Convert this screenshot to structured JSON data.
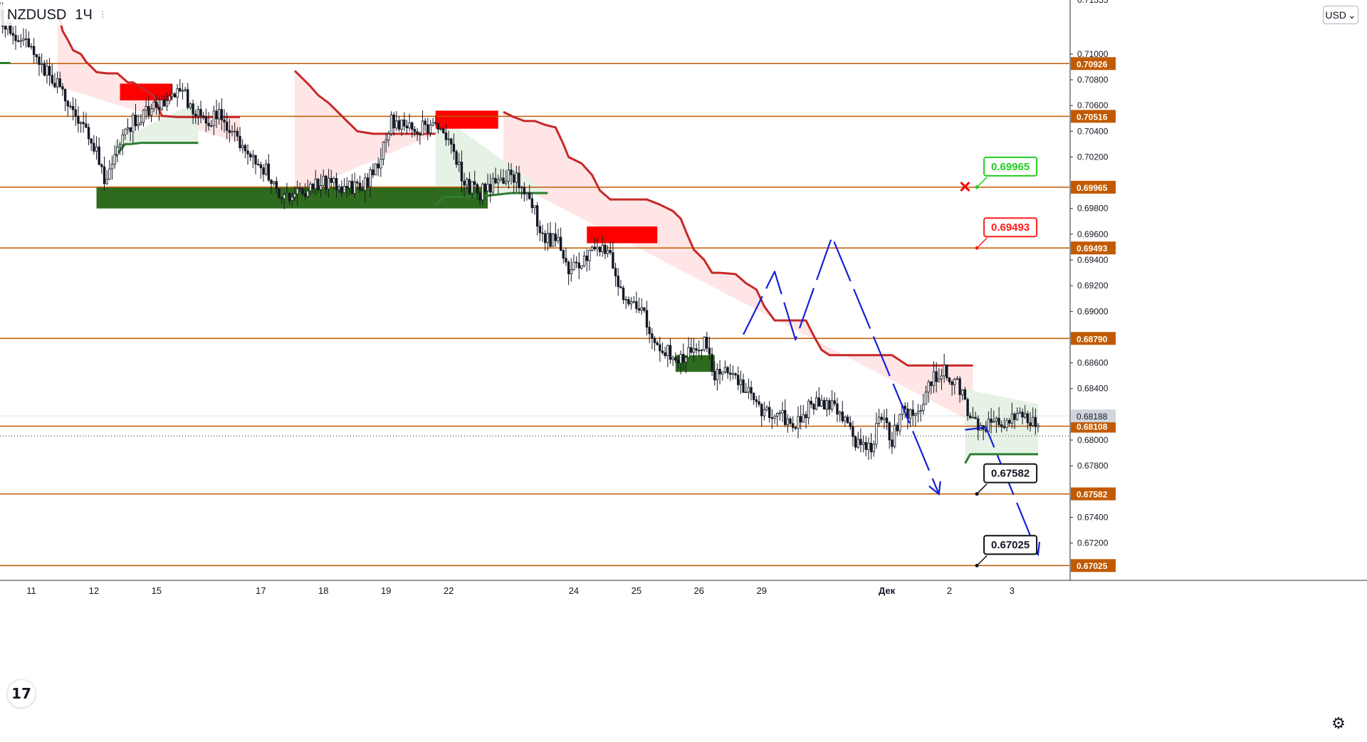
{
  "symbol": {
    "ticker": "NZDUSD",
    "interval": "1Ч",
    "status": "⁝"
  },
  "currency_button": {
    "label": "USD",
    "arrow": "⌄"
  },
  "logo": {
    "text": "17"
  },
  "settings": {
    "icon": "gear-icon"
  },
  "colors": {
    "level_line": "#c15a00",
    "level_badge": "#c15a00",
    "supply_zone": "#ff0000",
    "demand_zone": "#2e6b1e",
    "downtrend_line": "#c62828",
    "uptrend_line": "#2e7d32",
    "downtrend_fill": "#ffe5e5",
    "uptrend_fill": "#e5f2e5",
    "candles": "#131722",
    "projection": "#1321d6",
    "target_box_tp": "#111111",
    "target_box_sl": "#ff1a1a",
    "target_box_entry": "#22cc22"
  },
  "chart_data": {
    "type": "candlestick",
    "symbol": "NZDUSD",
    "timeframe": "1Ч",
    "ylim": [
      0.6691,
      0.7142
    ],
    "y_ticks": [
      "0.71000",
      "0.70800",
      "0.70600",
      "0.70400",
      "0.70200",
      "0.69800",
      "0.69600",
      "0.69400",
      "0.69200",
      "0.69000",
      "0.68600",
      "0.68400",
      "0.68000",
      "0.67800",
      "0.67400",
      "0.67200"
    ],
    "y_tick_values": [
      0.71,
      0.708,
      0.706,
      0.704,
      0.702,
      0.698,
      0.696,
      0.694,
      0.692,
      0.69,
      0.686,
      0.684,
      0.68,
      0.678,
      0.674,
      0.672
    ],
    "top_partial_tick": "0.71355",
    "x_ticks": [
      "11",
      "12",
      "15",
      "17",
      "18",
      "19",
      "22",
      "24",
      "25",
      "26",
      "29",
      "Дек",
      "2",
      "3"
    ],
    "x_tick_index": [
      0,
      24,
      48,
      88,
      112,
      136,
      160,
      208,
      232,
      256,
      280,
      328,
      352,
      376
    ],
    "x_range_index": [
      -12,
      398
    ],
    "current_price": "0.68188",
    "current_price_value": 0.68188,
    "levels": [
      {
        "label": "0.70926",
        "value": 0.70926
      },
      {
        "label": "0.70516",
        "value": 0.70516
      },
      {
        "label": "0.69965",
        "value": 0.69965
      },
      {
        "label": "0.69493",
        "value": 0.69493
      },
      {
        "label": "0.68790",
        "value": 0.6879
      },
      {
        "label": "0.68108",
        "value": 0.68108
      },
      {
        "label": "0.67582",
        "value": 0.67582
      },
      {
        "label": "0.67025",
        "value": 0.67025
      }
    ],
    "target_labels": [
      {
        "label": "0.69965",
        "value": 0.69965,
        "kind": "entry",
        "index": 362
      },
      {
        "label": "0.69493",
        "value": 0.69493,
        "kind": "stop",
        "index": 362
      },
      {
        "label": "0.67582",
        "value": 0.67582,
        "kind": "target",
        "index": 362
      },
      {
        "label": "0.67025",
        "value": 0.67025,
        "kind": "target",
        "index": 362
      }
    ],
    "cross_marker": {
      "index": 358,
      "value": 0.6997
    },
    "supply_zones": [
      {
        "i0": 34,
        "i1": 54,
        "top": 0.7077,
        "bottom": 0.7064
      },
      {
        "i0": 155,
        "i1": 179,
        "top": 0.7056,
        "bottom": 0.7042
      },
      {
        "i0": 213,
        "i1": 240,
        "top": 0.6966,
        "bottom": 0.6953
      }
    ],
    "demand_zones": [
      {
        "i0": 25,
        "i1": 175,
        "top": 0.6997,
        "bottom": 0.698
      },
      {
        "i0": 247,
        "i1": 262,
        "top": 0.6866,
        "bottom": 0.6853
      }
    ],
    "downtrend_line": [
      [
        10,
        0.7135
      ],
      [
        12,
        0.7118
      ],
      [
        14,
        0.7111
      ],
      [
        16,
        0.7103
      ],
      [
        19,
        0.71
      ],
      [
        21,
        0.7094
      ],
      [
        25,
        0.7086
      ],
      [
        29,
        0.7085
      ],
      [
        33,
        0.7085
      ],
      [
        37,
        0.7078
      ],
      [
        39,
        0.7078
      ],
      [
        44,
        0.7072
      ],
      [
        47,
        0.7067
      ],
      [
        50,
        0.7052
      ],
      [
        56,
        0.7051
      ],
      [
        62,
        0.7051
      ],
      [
        68,
        0.7051
      ],
      [
        74,
        0.7051
      ],
      [
        80,
        0.7051
      ]
    ],
    "downtrend_line_2": [
      [
        101,
        0.7087
      ],
      [
        104,
        0.7081
      ],
      [
        107,
        0.7075
      ],
      [
        110,
        0.7068
      ],
      [
        114,
        0.7062
      ],
      [
        117,
        0.7056
      ],
      [
        121,
        0.7048
      ],
      [
        125,
        0.704
      ],
      [
        131,
        0.7038
      ],
      [
        139,
        0.7038
      ],
      [
        149,
        0.7038
      ],
      [
        155,
        0.7038
      ]
    ],
    "downtrend_line_3": [
      [
        181,
        0.7055
      ],
      [
        185,
        0.7051
      ],
      [
        189,
        0.7048
      ],
      [
        193,
        0.7048
      ],
      [
        197,
        0.7045
      ],
      [
        201,
        0.7043
      ],
      [
        204,
        0.703
      ],
      [
        206,
        0.702
      ],
      [
        211,
        0.7015
      ],
      [
        215,
        0.7006
      ],
      [
        218,
        0.6994
      ],
      [
        222,
        0.6987
      ],
      [
        226,
        0.6987
      ],
      [
        236,
        0.6987
      ],
      [
        241,
        0.6983
      ],
      [
        246,
        0.6978
      ],
      [
        249,
        0.6972
      ],
      [
        251,
        0.6962
      ],
      [
        254,
        0.6948
      ],
      [
        258,
        0.694
      ],
      [
        261,
        0.693
      ],
      [
        264,
        0.693
      ],
      [
        270,
        0.6929
      ],
      [
        274,
        0.6922
      ],
      [
        278,
        0.6917
      ],
      [
        281,
        0.6904
      ],
      [
        285,
        0.6893
      ],
      [
        290,
        0.6893
      ],
      [
        297,
        0.6893
      ],
      [
        300,
        0.6881
      ],
      [
        303,
        0.687
      ],
      [
        306,
        0.6866
      ],
      [
        314,
        0.6866
      ],
      [
        330,
        0.6866
      ],
      [
        336,
        0.6858
      ],
      [
        345,
        0.6858
      ],
      [
        361,
        0.6858
      ]
    ],
    "uptrend_line": [
      [
        -12,
        0.7093
      ],
      [
        -8,
        0.7093
      ]
    ],
    "uptrend_line_2": [
      [
        32,
        0.702
      ],
      [
        36,
        0.703
      ],
      [
        38,
        0.703
      ],
      [
        42,
        0.7031
      ],
      [
        50,
        0.7031
      ],
      [
        64,
        0.7031
      ]
    ],
    "uptrend_line_3": [
      [
        155,
        0.6982
      ],
      [
        158,
        0.6989
      ],
      [
        166,
        0.6989
      ],
      [
        175,
        0.699
      ],
      [
        184,
        0.6992
      ],
      [
        190,
        0.6992
      ],
      [
        198,
        0.6992
      ]
    ],
    "uptrend_line_4": [
      [
        358,
        0.6782
      ],
      [
        360,
        0.6789
      ],
      [
        372,
        0.6789
      ],
      [
        386,
        0.6789
      ]
    ],
    "projection_path_1": [
      [
        273,
        0.6882
      ],
      [
        285,
        0.6931
      ],
      [
        293,
        0.6878
      ],
      [
        307,
        0.6958
      ],
      [
        348,
        0.6758
      ]
    ],
    "projection_path_2": [
      [
        358,
        0.6808
      ],
      [
        366,
        0.681
      ],
      [
        386,
        0.6711
      ]
    ],
    "candles_seed": 20251201
  }
}
